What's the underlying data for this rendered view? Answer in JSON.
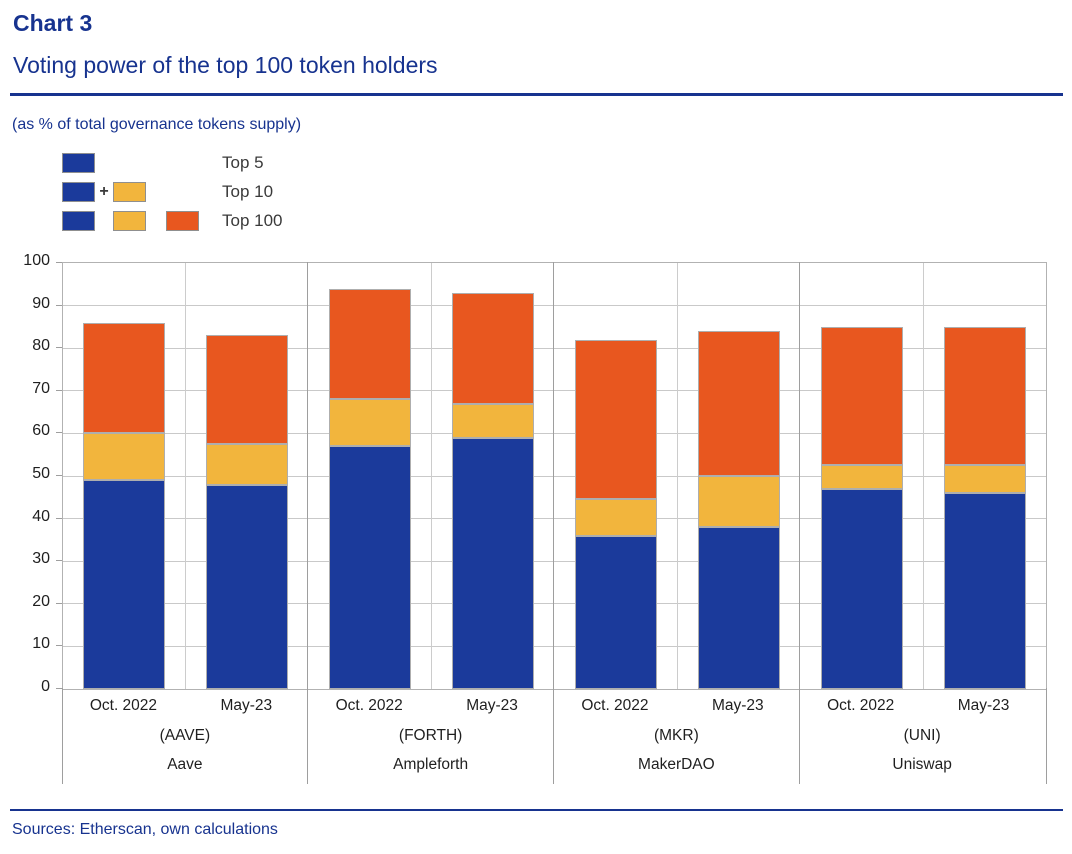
{
  "header": {
    "label": "Chart 3",
    "title": "Voting power of the top 100 token holders"
  },
  "units_note": "(as % of total governance tokens supply)",
  "legend": {
    "rows": [
      {
        "label": "Top 5"
      },
      {
        "label": "Top 10"
      },
      {
        "label": "Top 100"
      }
    ],
    "plus_sign": "+"
  },
  "footer": {
    "sources": "Sources: Etherscan, own calculations"
  },
  "colors": {
    "header_blue": "#17338F",
    "top5_blue": "#1B3A9B",
    "top10_yellow": "#F2B53D",
    "top100_orange": "#E8571F",
    "gridline": "#c9c9c9",
    "divider": "#9e9e9e"
  },
  "chart_data": {
    "type": "bar",
    "stacked": true,
    "title": "Voting power of the top 100 token holders",
    "ylabel": "(as % of total governance tokens supply)",
    "ylim": [
      0,
      100
    ],
    "ytick_step": 10,
    "ytick_labels": [
      "0",
      "10",
      "20",
      "30",
      "40",
      "50",
      "60",
      "70",
      "80",
      "90",
      "100"
    ],
    "grid": true,
    "legend_position": "top-left",
    "series_names": [
      "Top 5",
      "Top 10",
      "Top 100"
    ],
    "groups": [
      {
        "ticker": "(AAVE)",
        "name": "Aave",
        "bars": [
          {
            "period": "Oct. 2022",
            "top5": 49,
            "top10": 60,
            "top100": 86
          },
          {
            "period": "May-23",
            "top5": 48,
            "top10": 57.5,
            "top100": 83
          }
        ]
      },
      {
        "ticker": "(FORTH)",
        "name": "Ampleforth",
        "bars": [
          {
            "period": "Oct. 2022",
            "top5": 57,
            "top10": 68,
            "top100": 94
          },
          {
            "period": "May-23",
            "top5": 59,
            "top10": 67,
            "top100": 93
          }
        ]
      },
      {
        "ticker": "(MKR)",
        "name": "MakerDAO",
        "bars": [
          {
            "period": "Oct. 2022",
            "top5": 36,
            "top10": 44.5,
            "top100": 82
          },
          {
            "period": "May-23",
            "top5": 38,
            "top10": 50,
            "top100": 84
          }
        ]
      },
      {
        "ticker": "(UNI)",
        "name": "Uniswap",
        "bars": [
          {
            "period": "Oct. 2022",
            "top5": 47,
            "top10": 52.5,
            "top100": 85
          },
          {
            "period": "May-23",
            "top5": 46,
            "top10": 52.5,
            "top100": 85
          }
        ]
      }
    ]
  }
}
